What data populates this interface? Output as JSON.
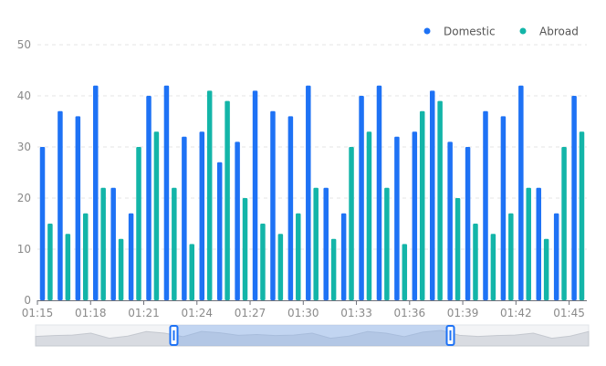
{
  "chart_data": {
    "type": "bar",
    "title": "",
    "xlabel": "",
    "ylabel": "",
    "ylim": [
      0,
      50
    ],
    "yticks": [
      0,
      10,
      20,
      30,
      40,
      50
    ],
    "xtick_labels": [
      "01:15",
      "01:18",
      "01:21",
      "01:24",
      "01:27",
      "01:30",
      "01:33",
      "01:36",
      "01:39",
      "01:42",
      "01:45"
    ],
    "categories": [
      "01:15",
      "01:16",
      "01:17",
      "01:18",
      "01:19",
      "01:20",
      "01:21",
      "01:22",
      "01:23",
      "01:24",
      "01:25",
      "01:26",
      "01:27",
      "01:28",
      "01:29",
      "01:30",
      "01:31",
      "01:32",
      "01:33",
      "01:34",
      "01:35",
      "01:36",
      "01:37",
      "01:38",
      "01:39",
      "01:40",
      "01:41",
      "01:42",
      "01:43",
      "01:44",
      "01:45"
    ],
    "series": [
      {
        "name": "Domestic",
        "color": "#1e72f5",
        "values": [
          30,
          37,
          36,
          42,
          22,
          17,
          40,
          42,
          32,
          33,
          27,
          31,
          41,
          37,
          36,
          42,
          22,
          17,
          40,
          42,
          32,
          33,
          41,
          31,
          30,
          37,
          36,
          42,
          22,
          17,
          40
        ]
      },
      {
        "name": "Abroad",
        "color": "#13b5a8",
        "values": [
          15,
          13,
          17,
          22,
          12,
          30,
          33,
          22,
          11,
          41,
          39,
          20,
          15,
          13,
          17,
          22,
          12,
          30,
          33,
          22,
          11,
          37,
          39,
          20,
          15,
          13,
          17,
          22,
          12,
          30,
          33
        ]
      }
    ],
    "legend_position": "top-right",
    "zoom": {
      "start": 0.25,
      "end": 0.75
    }
  }
}
